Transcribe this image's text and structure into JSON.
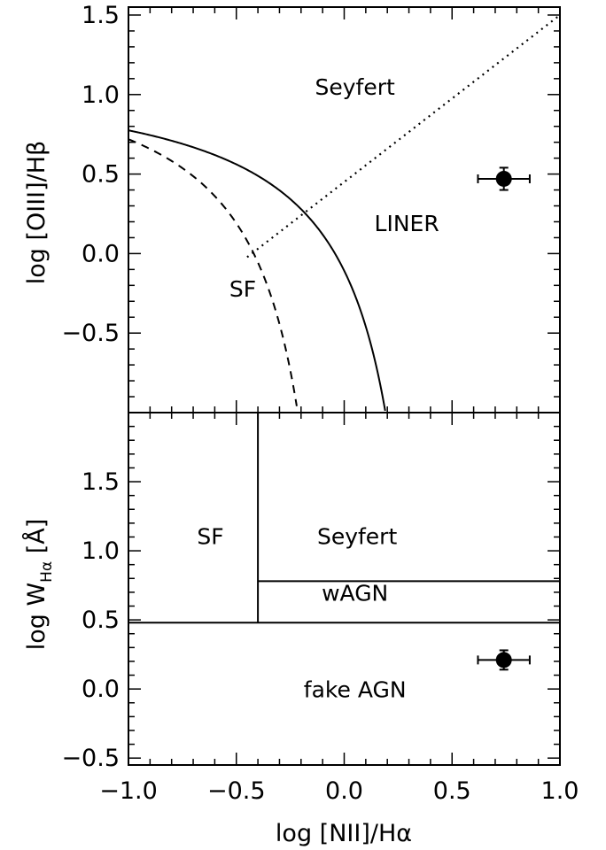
{
  "chart_data": [
    {
      "type": "scatter",
      "panel": "top",
      "xlabel": "log [NII]/Hα",
      "ylabel": "log [OIII]/Hβ",
      "xlim": [
        -1.0,
        1.0
      ],
      "ylim": [
        -1.0,
        1.55
      ],
      "grid": false,
      "x_ticks": [
        "−1.0",
        "−0.5",
        "0.0",
        "0.5",
        "1.0"
      ],
      "y_ticks": [
        {
          "value": 1.5,
          "label": "1.5"
        },
        {
          "value": 1.0,
          "label": "1.0"
        },
        {
          "value": 0.5,
          "label": "0.5"
        },
        {
          "value": 0.0,
          "label": "0.0"
        },
        {
          "value": -0.5,
          "label": "−0.5"
        }
      ],
      "region_labels": [
        {
          "text": "Seyfert",
          "x": 0.05,
          "y": 1.0
        },
        {
          "text": "LINER",
          "x": 0.29,
          "y": 0.14
        },
        {
          "text": "SF",
          "x": -0.47,
          "y": -0.27
        }
      ],
      "point": {
        "x": 0.74,
        "y": 0.47,
        "xerr": 0.12,
        "yerr": 0.07
      },
      "curves": [
        {
          "kind": "kauffmann",
          "style": "dashed",
          "from": -1.0,
          "to": -0.22
        },
        {
          "kind": "kewley",
          "style": "solid",
          "from": -1.0,
          "to": 0.19
        },
        {
          "kind": "seyfert-liner",
          "style": "dotted",
          "from": -0.45,
          "to": 1.0
        }
      ]
    },
    {
      "type": "scatter",
      "panel": "bottom",
      "xlabel": "log [NII]/Hα",
      "ylabel": "log W_Hα [Å]",
      "ylabel_main": "log W",
      "ylabel_sub": "Hα",
      "ylabel_tail": " [Å]",
      "xlim": [
        -1.0,
        1.0
      ],
      "ylim": [
        -0.55,
        2.0
      ],
      "grid": false,
      "x_ticks": [
        {
          "value": -1.0,
          "label": "−1.0"
        },
        {
          "value": -0.5,
          "label": "−0.5"
        },
        {
          "value": 0.0,
          "label": "0.0"
        },
        {
          "value": 0.5,
          "label": "0.5"
        },
        {
          "value": 1.0,
          "label": "1.0"
        }
      ],
      "y_ticks": [
        {
          "value": 1.5,
          "label": "1.5"
        },
        {
          "value": 1.0,
          "label": "1.0"
        },
        {
          "value": 0.5,
          "label": "0.5"
        },
        {
          "value": 0.0,
          "label": "0.0"
        },
        {
          "value": -0.5,
          "label": "−0.5"
        }
      ],
      "region_labels": [
        {
          "text": "SF",
          "x": -0.62,
          "y": 1.05
        },
        {
          "text": "Seyfert",
          "x": 0.06,
          "y": 1.05
        },
        {
          "text": "wAGN",
          "x": 0.05,
          "y": 0.64
        },
        {
          "text": "fake AGN",
          "x": 0.05,
          "y": -0.06
        }
      ],
      "point": {
        "x": 0.74,
        "y": 0.21,
        "xerr": 0.12,
        "yerr": 0.07
      },
      "boundaries": {
        "vertical_x": -0.4,
        "wagn_y": 0.78,
        "lower_y": 0.48
      }
    }
  ]
}
